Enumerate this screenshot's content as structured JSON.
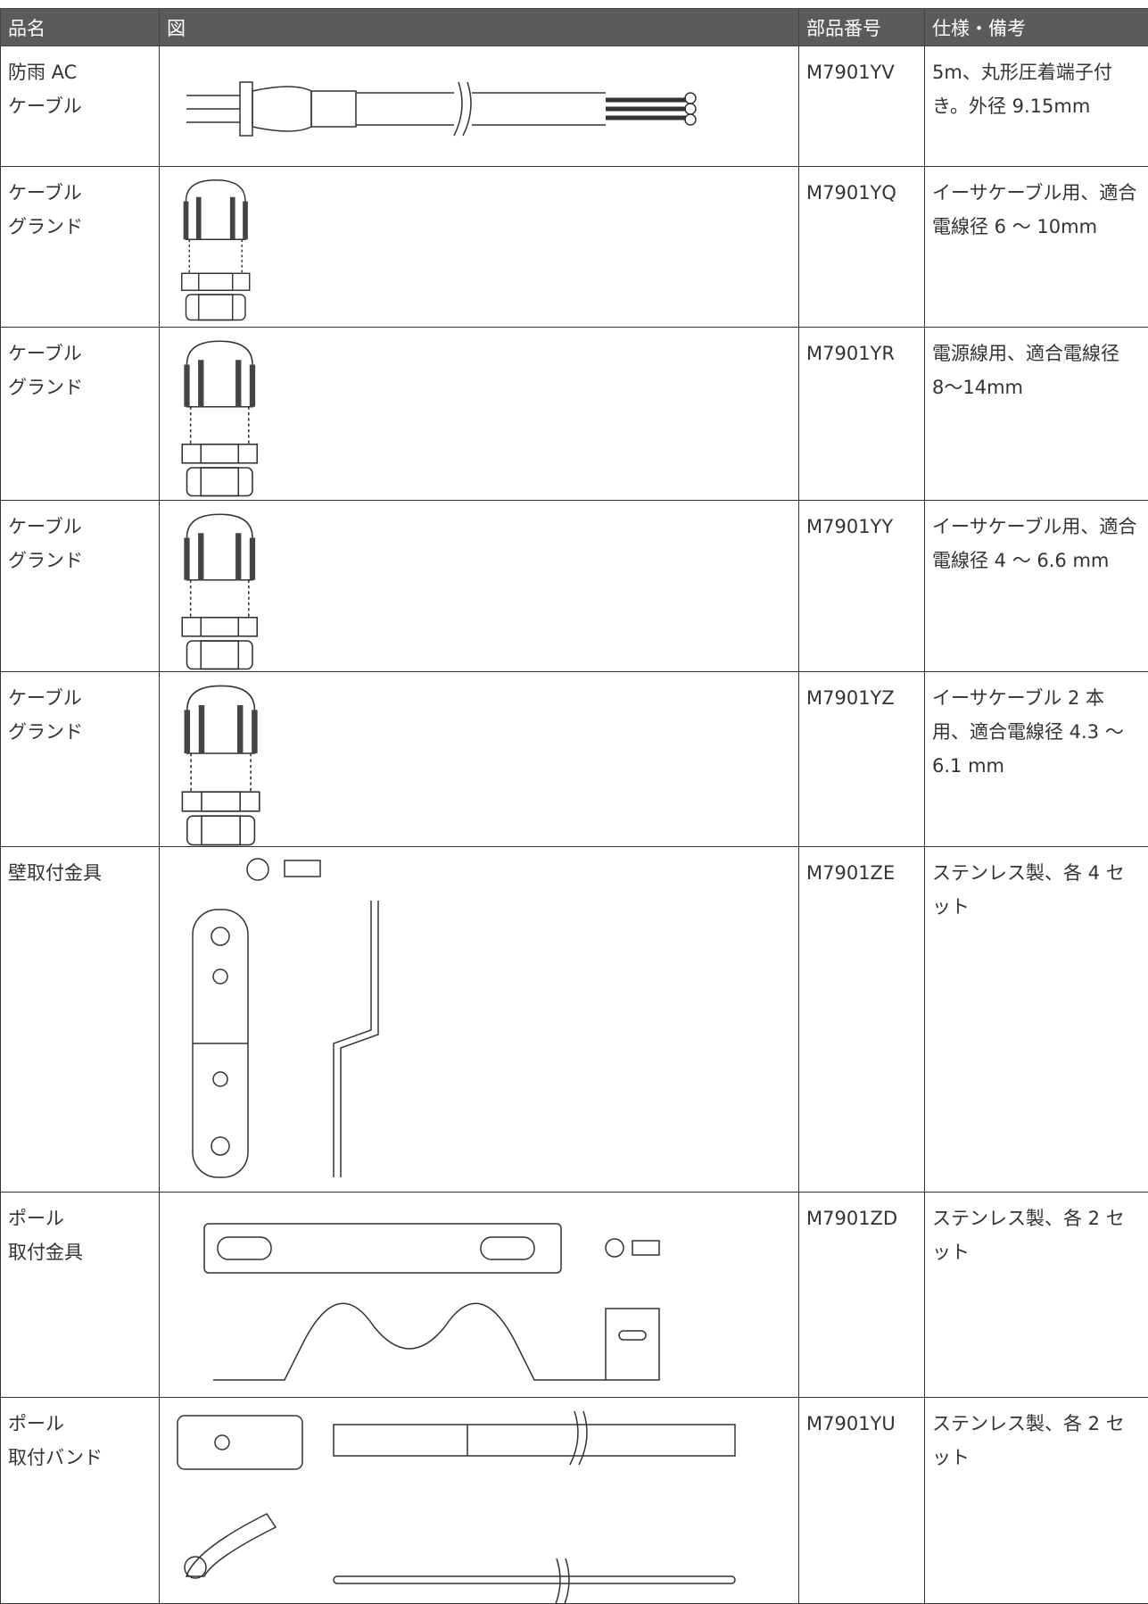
{
  "table": {
    "header": [
      "品名",
      "図",
      "部品番号",
      "仕様・備考"
    ],
    "rows": [
      {
        "name": [
          "防雨 AC",
          "ケーブル"
        ],
        "part": "M7901YV",
        "spec": "5m、丸形圧着端子付き。外径 9.15mm"
      },
      {
        "name": [
          "ケーブル",
          "グランド"
        ],
        "part": "M7901YQ",
        "spec": "イーサケーブル用、適合電線径 6 〜 10mm"
      },
      {
        "name": [
          "ケーブル",
          "グランド"
        ],
        "part": "M7901YR",
        "spec": "電源線用、適合電線径 8〜14mm"
      },
      {
        "name": [
          "ケーブル",
          "グランド"
        ],
        "part": "M7901YY",
        "spec": "イーサケーブル用、適合電線径 4 〜 6.6 mm"
      },
      {
        "name": [
          "ケーブル",
          "グランド"
        ],
        "part": "M7901YZ",
        "spec": "イーサケーブル 2 本用、適合電線径 4.3 〜 6.1 mm"
      },
      {
        "name": [
          "壁取付金具"
        ],
        "part": "M7901ZE",
        "spec": "ステンレス製、各 4 セット"
      },
      {
        "name": [
          "ポール",
          "取付金具"
        ],
        "part": "M7901ZD",
        "spec": "ステンレス製、各 2 セット"
      },
      {
        "name": [
          "ポール",
          "取付バンド"
        ],
        "part": "M7901YU",
        "spec": "ステンレス製、各 2 セット"
      }
    ]
  }
}
